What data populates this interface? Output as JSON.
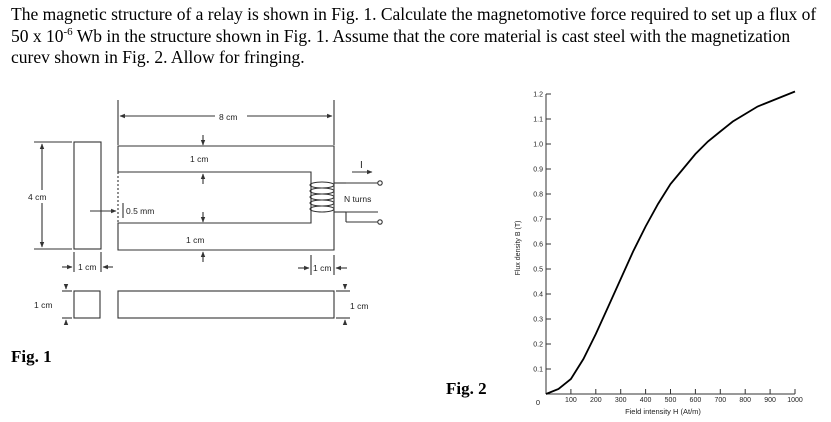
{
  "problem": {
    "text_before_sup": "The magnetic structure of a relay is shown in Fig. 1. Calculate the magnetomotive force required to set up a flux of 50 x 10",
    "sup": "-6",
    "text_after_sup": " Wb in the structure shown in Fig. 1. Assume that the core material is cast steel with the magnetization curev shown in Fig. 2. Allow for fringing."
  },
  "fig1": {
    "caption": "Fig. 1",
    "labels": {
      "width": "8 cm",
      "top_thickness": "1 cm",
      "bottom_thickness": "1 cm",
      "height": "4 cm",
      "air_gap": "0.5 mm",
      "current": "I",
      "turns": "N turns",
      "left_leg_width": "1 cm",
      "right_leg_width": "1 cm",
      "section_square": "1 cm",
      "section_bar": "1 cm"
    }
  },
  "fig2": {
    "caption": "Fig. 2"
  },
  "chart_data": {
    "type": "line",
    "xlabel": "Field intensity H (At/m)",
    "ylabel": "Flux density B (T)",
    "xlim": [
      0,
      1000
    ],
    "ylim": [
      0,
      1.2
    ],
    "x_ticks": [
      "100",
      "200",
      "300",
      "400",
      "500",
      "600",
      "700",
      "800",
      "900",
      "1000"
    ],
    "y_ticks": [
      "0.1",
      "0.2",
      "0.3",
      "0.4",
      "0.5",
      "0.6",
      "0.7",
      "0.8",
      "0.9",
      "1.0",
      "1.1",
      "1.2"
    ],
    "origin_label": "0",
    "grid": false,
    "series": [
      {
        "x": [
          0,
          50,
          100,
          150,
          200,
          250,
          300,
          350,
          400,
          450,
          500,
          550,
          600,
          650,
          700,
          750,
          800,
          850,
          900,
          950,
          1000
        ],
        "y": [
          0,
          0.02,
          0.06,
          0.14,
          0.24,
          0.35,
          0.46,
          0.57,
          0.67,
          0.76,
          0.84,
          0.9,
          0.96,
          1.01,
          1.05,
          1.09,
          1.12,
          1.15,
          1.17,
          1.19,
          1.21
        ]
      }
    ]
  }
}
